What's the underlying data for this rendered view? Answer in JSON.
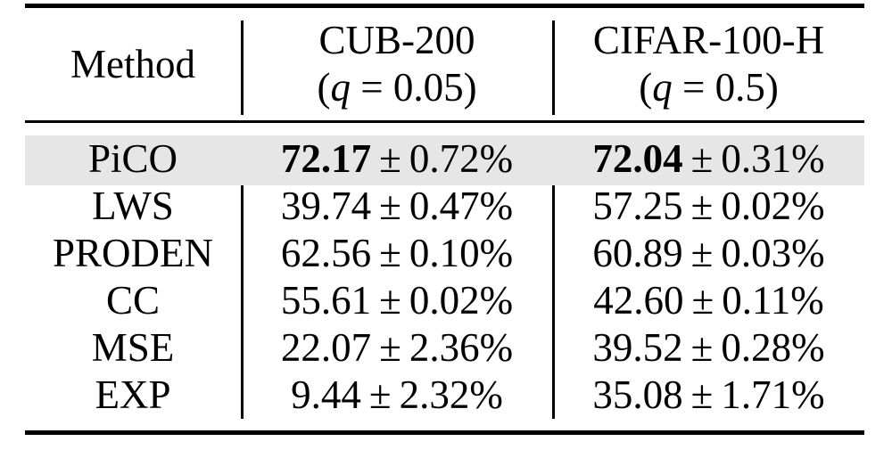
{
  "table": {
    "columns": [
      {
        "label": "Method"
      },
      {
        "label": "CUB-200",
        "param_pre": "(",
        "param_var": "q",
        "param_post": " = 0.05)"
      },
      {
        "label": "CIFAR-100-H",
        "param_pre": "(",
        "param_var": "q",
        "param_post": " = 0.5)"
      }
    ],
    "rows": [
      {
        "method": "PiCO",
        "cub_mean": "72.17",
        "cub_pm": "±",
        "cub_std": "0.72%",
        "cifar_mean": "72.04",
        "cifar_pm": "±",
        "cifar_std": "0.31%"
      },
      {
        "method": "LWS",
        "cub_mean": "39.74",
        "cub_pm": "±",
        "cub_std": "0.47%",
        "cifar_mean": "57.25",
        "cifar_pm": "±",
        "cifar_std": "0.02%"
      },
      {
        "method": "PRODEN",
        "cub_mean": "62.56",
        "cub_pm": "±",
        "cub_std": "0.10%",
        "cifar_mean": "60.89",
        "cifar_pm": "±",
        "cifar_std": "0.03%"
      },
      {
        "method": "CC",
        "cub_mean": "55.61",
        "cub_pm": "±",
        "cub_std": "0.02%",
        "cifar_mean": "42.60",
        "cifar_pm": "±",
        "cifar_std": "0.11%"
      },
      {
        "method": "MSE",
        "cub_mean": "22.07",
        "cub_pm": "±",
        "cub_std": "2.36%",
        "cifar_mean": "39.52",
        "cifar_pm": "±",
        "cifar_std": "0.28%"
      },
      {
        "method": "EXP",
        "cub_mean": "9.44",
        "cub_pm": "±",
        "cub_std": "2.32%",
        "cifar_mean": "35.08",
        "cifar_pm": "±",
        "cifar_std": "1.71%"
      }
    ],
    "highlighted_row": "PiCO"
  },
  "colors": {
    "highlight": "#e6e6e6",
    "rule": "#000000",
    "text": "#000000",
    "background": "#ffffff"
  }
}
